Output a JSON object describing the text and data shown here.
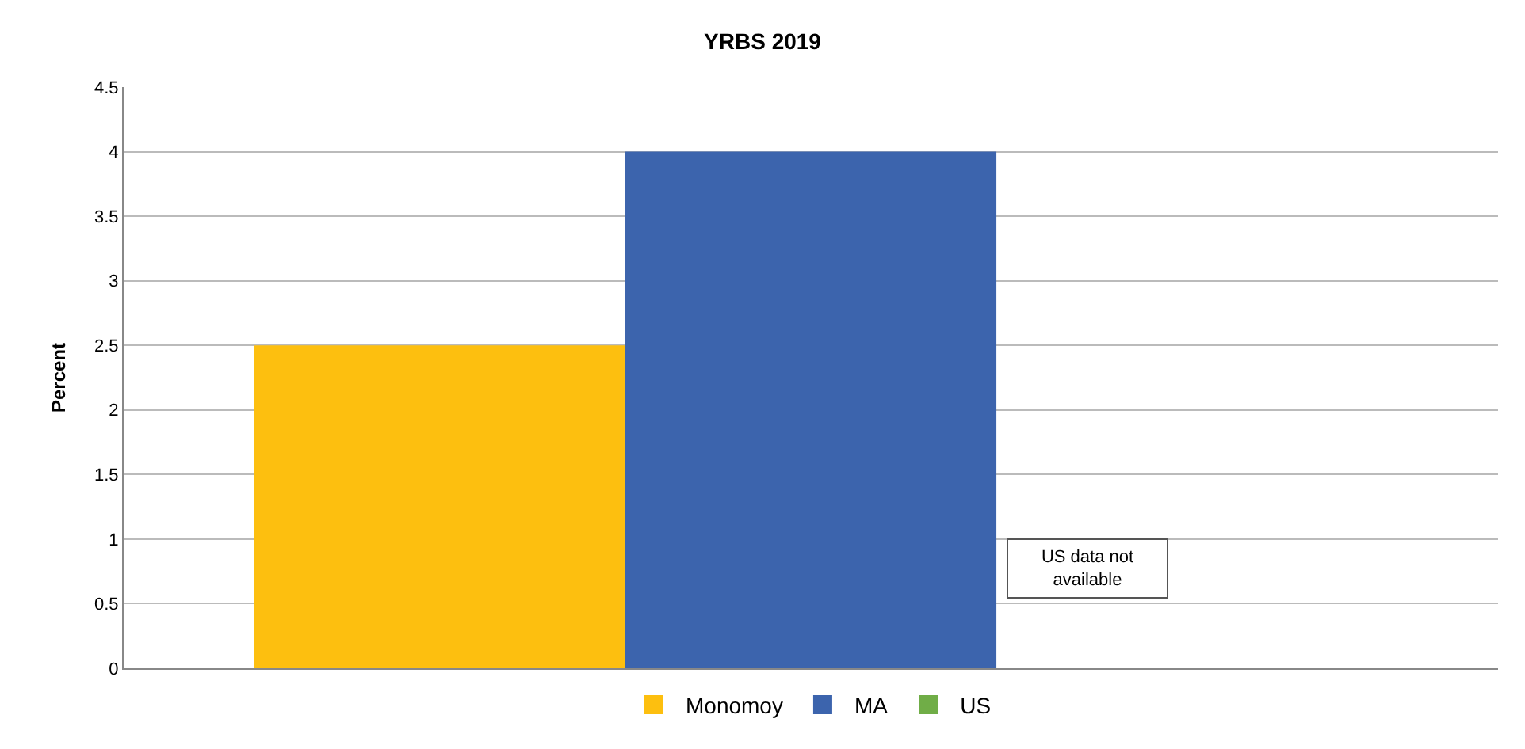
{
  "chart_data": {
    "type": "bar",
    "title": "YRBS 2019",
    "ylabel": "Percent",
    "categories": [
      null
    ],
    "series": [
      {
        "name": "Monomoy",
        "color": "#fdbf0f",
        "values": [
          2.5
        ]
      },
      {
        "name": "MA",
        "color": "#3c64ad",
        "values": [
          4
        ]
      },
      {
        "name": "US",
        "color": "#70ad47",
        "values": [
          null
        ]
      }
    ],
    "ylim": [
      0,
      4.5
    ],
    "yticks": [
      0,
      0.5,
      1,
      1.5,
      2,
      2.5,
      3,
      3.5,
      4,
      4.5
    ],
    "grid": "y",
    "legend": "bottom",
    "annotations": [
      "US data not available"
    ]
  }
}
